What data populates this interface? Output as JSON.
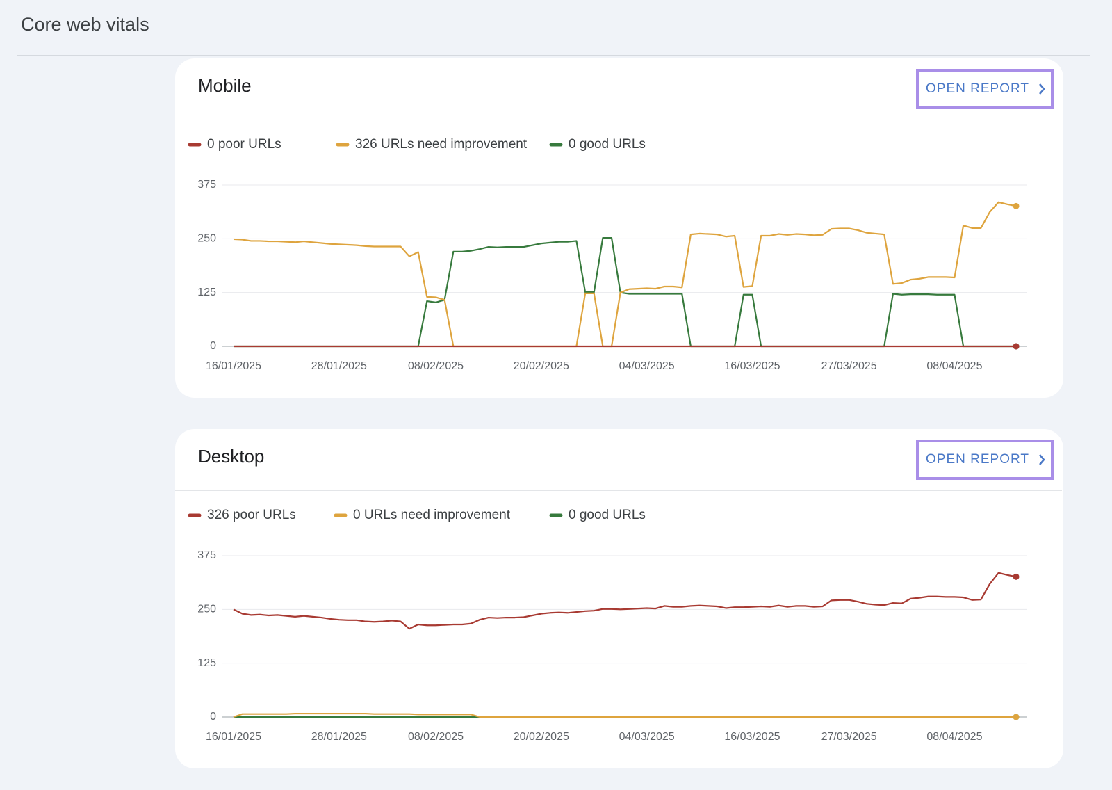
{
  "page": {
    "title": "Core web vitals"
  },
  "cards": [
    {
      "button": "OPEN REPORT"
    },
    {
      "button": "OPEN REPORT"
    }
  ],
  "chart_data": [
    {
      "type": "line",
      "title": "Mobile",
      "categories": [
        "16/01/2025",
        null,
        null,
        null,
        null,
        null,
        null,
        null,
        null,
        null,
        null,
        null,
        "28/01/2025",
        null,
        null,
        null,
        null,
        null,
        null,
        null,
        null,
        null,
        null,
        "08/02/2025",
        null,
        null,
        null,
        null,
        null,
        null,
        null,
        null,
        null,
        null,
        null,
        "20/02/2025",
        null,
        null,
        null,
        null,
        null,
        null,
        null,
        null,
        null,
        null,
        null,
        "04/03/2025",
        null,
        null,
        null,
        null,
        null,
        null,
        null,
        null,
        null,
        null,
        null,
        "16/03/2025",
        null,
        null,
        null,
        null,
        null,
        null,
        null,
        null,
        null,
        null,
        "27/03/2025",
        null,
        null,
        null,
        null,
        null,
        null,
        null,
        null,
        null,
        null,
        null,
        "08/04/2025",
        null,
        null,
        null,
        null,
        null,
        null,
        null
      ],
      "ylim": [
        0,
        375
      ],
      "yticks": [
        0,
        125,
        250,
        375
      ],
      "grid": true,
      "series": [
        {
          "name": "0 poor URLs",
          "color": "#a83a32",
          "values": [
            0,
            0,
            0,
            0,
            0,
            0,
            0,
            0,
            0,
            0,
            0,
            0,
            0,
            0,
            0,
            0,
            0,
            0,
            0,
            0,
            0,
            0,
            0,
            0,
            0,
            0,
            0,
            0,
            0,
            0,
            0,
            0,
            0,
            0,
            0,
            0,
            0,
            0,
            0,
            0,
            0,
            0,
            0,
            0,
            0,
            0,
            0,
            0,
            0,
            0,
            0,
            0,
            0,
            0,
            0,
            0,
            0,
            0,
            0,
            0,
            0,
            0,
            0,
            0,
            0,
            0,
            0,
            0,
            0,
            0,
            0,
            0,
            0,
            0,
            0,
            0,
            0,
            0,
            0,
            0,
            0,
            0,
            0,
            0,
            0,
            0,
            0,
            0,
            0,
            0
          ]
        },
        {
          "name": "326 URLs need improvement",
          "color": "#dea43e",
          "values": [
            249,
            248,
            245,
            245,
            244,
            244,
            243,
            242,
            244,
            242,
            240,
            238,
            237,
            236,
            235,
            233,
            232,
            232,
            232,
            232,
            209,
            219,
            115,
            114,
            108,
            0,
            0,
            0,
            0,
            0,
            0,
            0,
            0,
            0,
            0,
            0,
            0,
            0,
            0,
            0,
            123,
            123,
            0,
            0,
            125,
            133,
            134,
            135,
            134,
            139,
            139,
            137,
            260,
            262,
            261,
            260,
            255,
            257,
            138,
            140,
            257,
            257,
            261,
            259,
            261,
            260,
            258,
            259,
            273,
            274,
            274,
            270,
            264,
            262,
            260,
            145,
            147,
            155,
            157,
            161,
            161,
            161,
            160,
            281,
            275,
            275,
            312,
            335,
            330,
            326
          ]
        },
        {
          "name": "0 good URLs",
          "color": "#377a3d",
          "values": [
            0,
            0,
            0,
            0,
            0,
            0,
            0,
            0,
            0,
            0,
            0,
            0,
            0,
            0,
            0,
            0,
            0,
            0,
            0,
            0,
            0,
            0,
            105,
            102,
            108,
            220,
            220,
            222,
            226,
            231,
            230,
            231,
            231,
            231,
            235,
            239,
            241,
            243,
            243,
            245,
            126,
            126,
            252,
            252,
            125,
            122,
            122,
            122,
            122,
            122,
            122,
            122,
            0,
            0,
            0,
            0,
            0,
            0,
            120,
            120,
            0,
            0,
            0,
            0,
            0,
            0,
            0,
            0,
            0,
            0,
            0,
            0,
            0,
            0,
            0,
            122,
            120,
            121,
            121,
            121,
            120,
            120,
            120,
            0,
            0,
            0,
            0,
            0,
            0,
            0
          ]
        }
      ]
    },
    {
      "type": "line",
      "title": "Desktop",
      "categories": [
        "16/01/2025",
        null,
        null,
        null,
        null,
        null,
        null,
        null,
        null,
        null,
        null,
        null,
        "28/01/2025",
        null,
        null,
        null,
        null,
        null,
        null,
        null,
        null,
        null,
        null,
        "08/02/2025",
        null,
        null,
        null,
        null,
        null,
        null,
        null,
        null,
        null,
        null,
        null,
        "20/02/2025",
        null,
        null,
        null,
        null,
        null,
        null,
        null,
        null,
        null,
        null,
        null,
        "04/03/2025",
        null,
        null,
        null,
        null,
        null,
        null,
        null,
        null,
        null,
        null,
        null,
        "16/03/2025",
        null,
        null,
        null,
        null,
        null,
        null,
        null,
        null,
        null,
        null,
        "27/03/2025",
        null,
        null,
        null,
        null,
        null,
        null,
        null,
        null,
        null,
        null,
        null,
        "08/04/2025",
        null,
        null,
        null,
        null,
        null,
        null,
        null
      ],
      "ylim": [
        0,
        375
      ],
      "yticks": [
        0,
        125,
        250,
        375
      ],
      "grid": true,
      "series": [
        {
          "name": "326 poor URLs",
          "color": "#a83a32",
          "values": [
            250,
            240,
            237,
            238,
            236,
            237,
            235,
            233,
            235,
            233,
            231,
            228,
            226,
            225,
            225,
            222,
            221,
            222,
            224,
            222,
            205,
            215,
            213,
            213,
            214,
            215,
            215,
            217,
            226,
            231,
            230,
            231,
            231,
            232,
            236,
            240,
            242,
            243,
            242,
            244,
            246,
            247,
            251,
            251,
            250,
            251,
            252,
            253,
            252,
            258,
            256,
            256,
            258,
            259,
            258,
            257,
            253,
            255,
            255,
            256,
            257,
            256,
            259,
            256,
            258,
            258,
            256,
            257,
            271,
            272,
            272,
            268,
            263,
            261,
            260,
            265,
            264,
            275,
            277,
            280,
            280,
            279,
            279,
            278,
            272,
            273,
            309,
            335,
            330,
            326
          ]
        },
        {
          "name": "0 URLs need improvement",
          "color": "#dea43e",
          "values": [
            0,
            7,
            7,
            7,
            7,
            7,
            7,
            8,
            8,
            8,
            8,
            8,
            8,
            8,
            8,
            8,
            7,
            7,
            7,
            7,
            7,
            6,
            6,
            6,
            6,
            6,
            6,
            6,
            0,
            0,
            0,
            0,
            0,
            0,
            0,
            0,
            0,
            0,
            0,
            0,
            0,
            0,
            0,
            0,
            0,
            0,
            0,
            0,
            0,
            0,
            0,
            0,
            0,
            0,
            0,
            0,
            0,
            0,
            0,
            0,
            0,
            0,
            0,
            0,
            0,
            0,
            0,
            0,
            0,
            0,
            0,
            0,
            0,
            0,
            0,
            0,
            0,
            0,
            0,
            0,
            0,
            0,
            0,
            0,
            0,
            0,
            0,
            0,
            0,
            0
          ]
        },
        {
          "name": "0 good URLs",
          "color": "#377a3d",
          "values": [
            0,
            0,
            0,
            0,
            0,
            0,
            0,
            0,
            0,
            0,
            0,
            0,
            0,
            0,
            0,
            0,
            0,
            0,
            0,
            0,
            0,
            0,
            0,
            0,
            0,
            0,
            0,
            0,
            0,
            0,
            0,
            0,
            0,
            0,
            0,
            0,
            0,
            0,
            0,
            0,
            0,
            0,
            0,
            0,
            0,
            0,
            0,
            0,
            0,
            0,
            0,
            0,
            0,
            0,
            0,
            0,
            0,
            0,
            0,
            0,
            0,
            0,
            0,
            0,
            0,
            0,
            0,
            0,
            0,
            0,
            0,
            0,
            0,
            0,
            0,
            0,
            0,
            0,
            0,
            0,
            0,
            0,
            0,
            0,
            0,
            0,
            0,
            0,
            0,
            0
          ]
        }
      ]
    }
  ]
}
